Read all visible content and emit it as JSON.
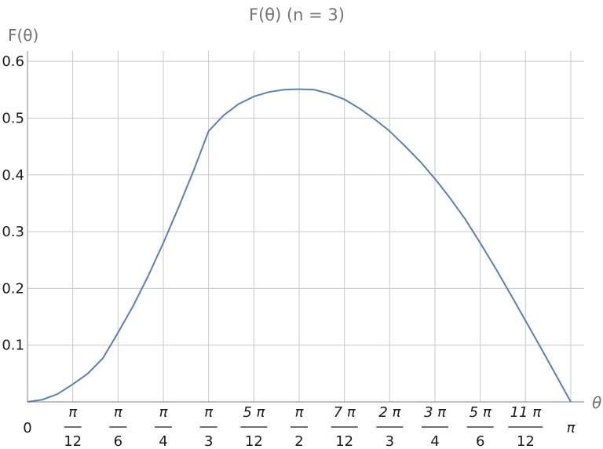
{
  "chart_data": {
    "type": "line",
    "title": "F(θ) (n = 3)",
    "xlabel": "θ",
    "ylabel": "F(θ)",
    "xlim": [
      0,
      3.14159
    ],
    "ylim": [
      0,
      0.6
    ],
    "grid": true,
    "x_ticks": [
      {
        "value": 0,
        "label": "0"
      },
      {
        "value": 0.2618,
        "num": "π",
        "den": "12"
      },
      {
        "value": 0.5236,
        "num": "π",
        "den": "6"
      },
      {
        "value": 0.7854,
        "num": "π",
        "den": "4"
      },
      {
        "value": 1.0472,
        "num": "π",
        "den": "3"
      },
      {
        "value": 1.309,
        "num": "5 π",
        "den": "12"
      },
      {
        "value": 1.5708,
        "num": "π",
        "den": "2"
      },
      {
        "value": 1.8326,
        "num": "7 π",
        "den": "12"
      },
      {
        "value": 2.0944,
        "num": "2 π",
        "den": "3"
      },
      {
        "value": 2.3562,
        "num": "3 π",
        "den": "4"
      },
      {
        "value": 2.618,
        "num": "5 π",
        "den": "6"
      },
      {
        "value": 2.8798,
        "num": "11 π",
        "den": "12"
      },
      {
        "value": 3.14159,
        "label": "π"
      }
    ],
    "y_ticks": [
      {
        "value": 0.1,
        "label": "0.1"
      },
      {
        "value": 0.2,
        "label": "0.2"
      },
      {
        "value": 0.3,
        "label": "0.3"
      },
      {
        "value": 0.4,
        "label": "0.4"
      },
      {
        "value": 0.5,
        "label": "0.5"
      },
      {
        "value": 0.6,
        "label": "0.6"
      }
    ],
    "series": [
      {
        "color": "#5b7fb7",
        "points": [
          [
            0,
            0
          ],
          [
            0.0873,
            0.004
          ],
          [
            0.1745,
            0.014
          ],
          [
            0.2618,
            0.031
          ],
          [
            0.349,
            0.05
          ],
          [
            0.4363,
            0.077
          ],
          [
            0.5236,
            0.122
          ],
          [
            0.6109,
            0.169
          ],
          [
            0.6981,
            0.222
          ],
          [
            0.7854,
            0.28
          ],
          [
            0.8727,
            0.342
          ],
          [
            0.9599,
            0.407
          ],
          [
            1.0472,
            0.477
          ],
          [
            1.1345,
            0.505
          ],
          [
            1.2217,
            0.525
          ],
          [
            1.309,
            0.538
          ],
          [
            1.3963,
            0.546
          ],
          [
            1.4835,
            0.55
          ],
          [
            1.5708,
            0.551
          ],
          [
            1.6581,
            0.55
          ],
          [
            1.7453,
            0.543
          ],
          [
            1.8326,
            0.533
          ],
          [
            1.9199,
            0.517
          ],
          [
            2.0071,
            0.498
          ],
          [
            2.0944,
            0.477
          ],
          [
            2.1817,
            0.451
          ],
          [
            2.2689,
            0.424
          ],
          [
            2.3562,
            0.393
          ],
          [
            2.4435,
            0.359
          ],
          [
            2.5307,
            0.322
          ],
          [
            2.618,
            0.28
          ],
          [
            2.7053,
            0.236
          ],
          [
            2.7925,
            0.19
          ],
          [
            2.8798,
            0.143
          ],
          [
            2.967,
            0.096
          ],
          [
            3.0543,
            0.048
          ],
          [
            3.14159,
            0
          ]
        ]
      }
    ]
  }
}
